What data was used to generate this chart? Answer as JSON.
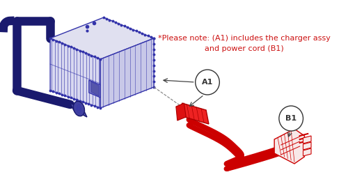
{
  "background_color": "#ffffff",
  "note_text_line1": "*Please note: (A1) includes the charger assy",
  "note_text_line2": "and power cord (B1)",
  "note_color": "#cc1111",
  "label_A1_text": "A1",
  "label_B1_text": "B1",
  "label_color": "#333333",
  "blue": "#3333aa",
  "dark_blue": "#1a1a6e",
  "red": "#cc0000",
  "light_red": "#ee3333"
}
